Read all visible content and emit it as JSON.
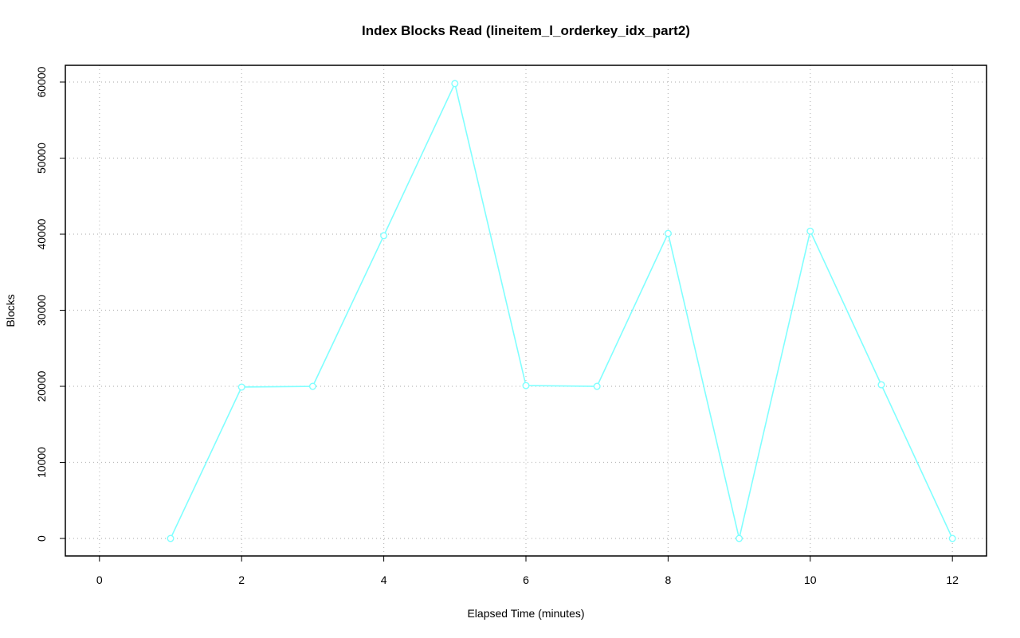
{
  "chart_data": {
    "type": "line",
    "title": "Index Blocks Read (lineitem_l_orderkey_idx_part2)",
    "x_label": "Elapsed Time (minutes)",
    "y_label": "Blocks",
    "x": [
      1,
      2,
      3,
      4,
      5,
      6,
      7,
      8,
      9,
      10,
      11,
      12
    ],
    "series": [
      {
        "name": "lineitem_l_orderkey_idx_part2",
        "color": "#80ffff",
        "values": [
          0,
          19900,
          20000,
          39800,
          59800,
          20100,
          20000,
          40100,
          0,
          40400,
          20200,
          0
        ]
      }
    ],
    "xlim": [
      -0.48,
      12.48
    ],
    "xticks": [
      0,
      2,
      4,
      6,
      8,
      10,
      12
    ],
    "ylim": [
      -2300,
      62200
    ],
    "yticks": [
      0,
      10000,
      20000,
      30000,
      40000,
      50000,
      60000
    ],
    "grid": true
  }
}
